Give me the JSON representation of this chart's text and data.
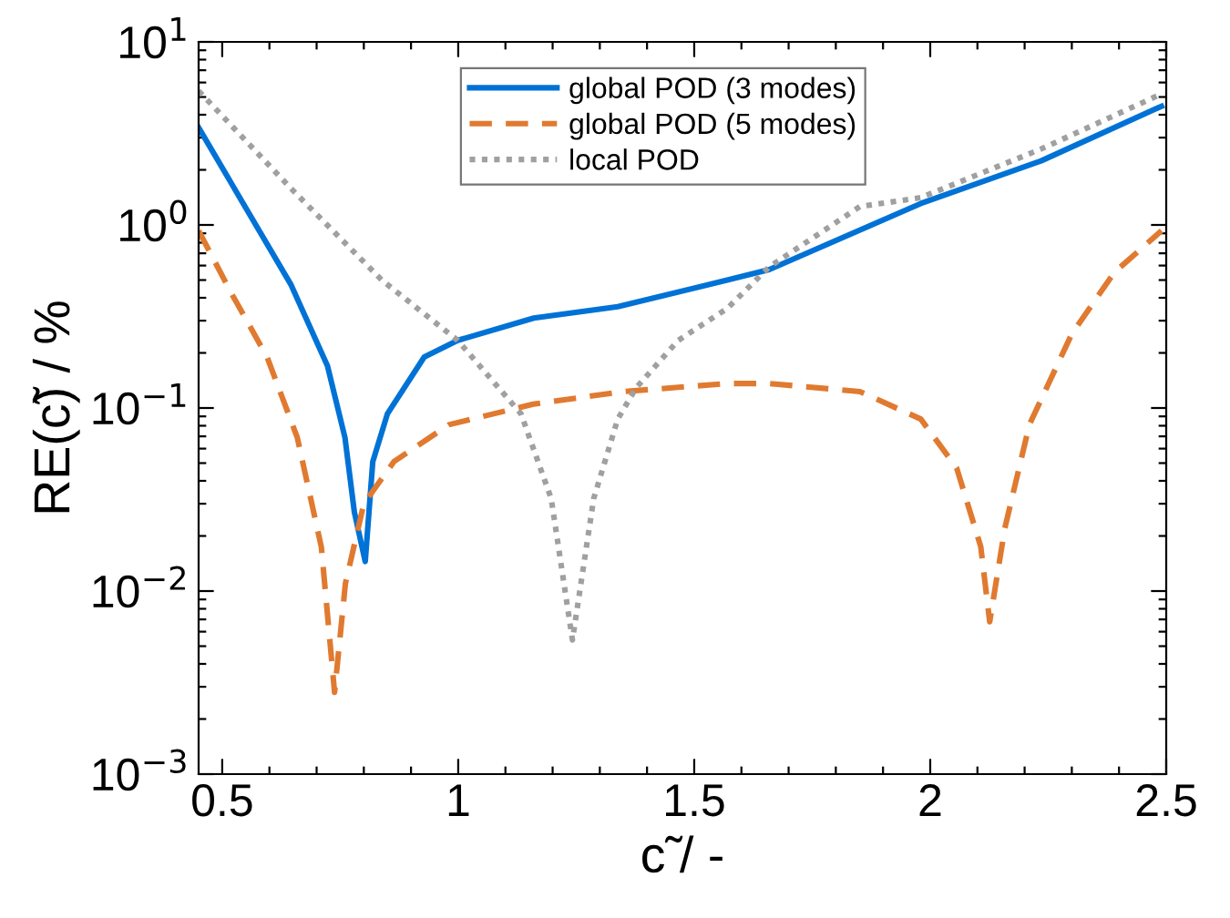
{
  "chart_data": {
    "type": "line",
    "xlabel": "c̃ / -",
    "ylabel": "RE(c̃) / %",
    "log": "y",
    "xlim": [
      0.45,
      2.5
    ],
    "xticks": [
      0.5,
      1,
      1.5,
      2,
      2.5
    ],
    "ylim": [
      0.001,
      10
    ],
    "yticks": [
      {
        "value": 0.001,
        "label": "10$^{−3}$"
      },
      {
        "value": 0.01,
        "label": "10$^{−2}$"
      },
      {
        "value": 0.1,
        "label": "10$^{−1}$"
      },
      {
        "value": 1,
        "label": "10$^{0}$"
      },
      {
        "value": 10,
        "label": "10$^{1}$"
      }
    ],
    "grid": false,
    "legend": "top",
    "series": [
      {
        "name": "global POD (3 modes)",
        "color": "#0072d6",
        "line_style": "solid",
        "x": [
          0.45,
          0.646,
          0.723,
          0.76,
          0.78,
          0.803,
          0.819,
          0.85,
          0.928,
          0.999,
          1.16,
          1.338,
          1.57,
          1.659,
          1.98,
          2.235,
          2.49
        ],
        "values": [
          3.4,
          0.47,
          0.17,
          0.069,
          0.027,
          0.0145,
          0.051,
          0.093,
          0.19,
          0.234,
          0.31,
          0.358,
          0.5,
          0.57,
          1.31,
          2.24,
          4.45
        ]
      },
      {
        "name": "global POD (5 modes)",
        "color": "#e07a30",
        "line_style": "dashed",
        "x": [
          0.45,
          0.518,
          0.595,
          0.659,
          0.71,
          0.738,
          0.761,
          0.8,
          0.864,
          0.98,
          1.159,
          1.35,
          1.57,
          1.659,
          1.851,
          1.98,
          2.056,
          2.107,
          2.126,
          2.158,
          2.21,
          2.3,
          2.39,
          2.49
        ],
        "values": [
          0.93,
          0.43,
          0.19,
          0.069,
          0.0174,
          0.0028,
          0.011,
          0.03,
          0.051,
          0.081,
          0.105,
          0.123,
          0.136,
          0.136,
          0.123,
          0.087,
          0.047,
          0.0175,
          0.0068,
          0.022,
          0.081,
          0.254,
          0.55,
          0.93
        ]
      },
      {
        "name": "local POD",
        "color": "#a0a0a0",
        "line_style": "dotted",
        "x": [
          0.45,
          0.646,
          0.838,
          0.999,
          1.133,
          1.197,
          1.242,
          1.287,
          1.338,
          1.377,
          1.466,
          1.57,
          1.659,
          1.851,
          1.98,
          2.235,
          2.49
        ],
        "values": [
          5.4,
          1.58,
          0.5,
          0.234,
          0.093,
          0.032,
          0.0054,
          0.032,
          0.087,
          0.129,
          0.234,
          0.35,
          0.59,
          1.26,
          1.41,
          2.6,
          5.2
        ]
      }
    ]
  }
}
